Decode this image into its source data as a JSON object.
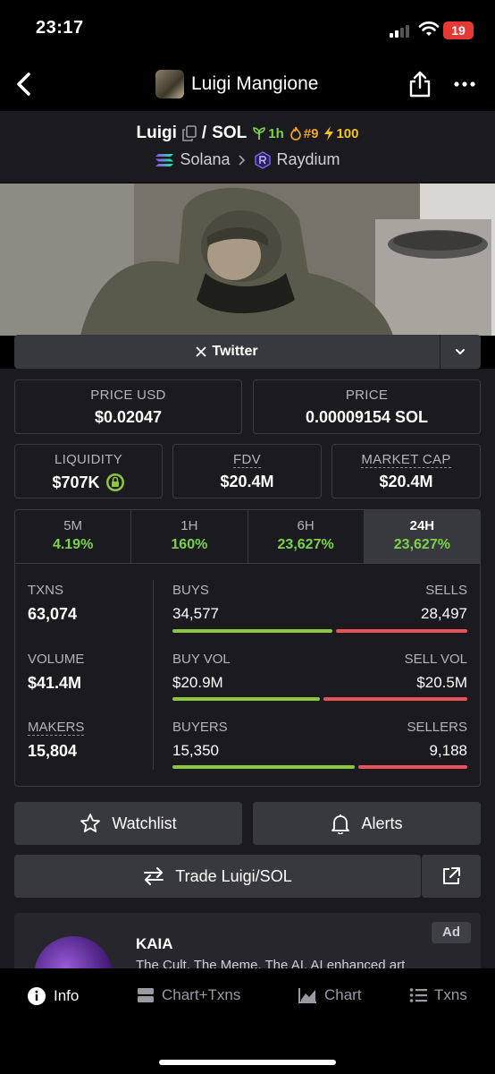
{
  "status_bar": {
    "time": "23:17",
    "battery": "19"
  },
  "nav": {
    "title": "Luigi Mangione"
  },
  "pair": {
    "base": "Luigi",
    "separator": "/",
    "quote": "SOL",
    "age": "1h",
    "rank": "#9",
    "boost": "100",
    "chain": "Solana",
    "dex": "Raydium"
  },
  "socials": {
    "twitter_label": "Twitter"
  },
  "prices": {
    "price_usd_label": "PRICE USD",
    "price_usd": "$0.02047",
    "price_native_label": "PRICE",
    "price_native": "0.00009154 SOL"
  },
  "metrics": {
    "liquidity_label": "LIQUIDITY",
    "liquidity": "$707K",
    "fdv_label": "FDV",
    "fdv": "$20.4M",
    "mcap_label": "MARKET CAP",
    "mcap": "$20.4M"
  },
  "timeframes": [
    {
      "label": "5M",
      "value": "4.19%"
    },
    {
      "label": "1H",
      "value": "160%"
    },
    {
      "label": "6H",
      "value": "23,627%"
    },
    {
      "label": "24H",
      "value": "23,627%"
    }
  ],
  "stats": {
    "txns_label": "TXNS",
    "txns": "63,074",
    "volume_label": "VOLUME",
    "volume": "$41.4M",
    "makers_label": "MAKERS",
    "makers": "15,804",
    "buys_label": "BUYS",
    "buys": "34,577",
    "sells_label": "SELLS",
    "sells": "28,497",
    "buy_vol_label": "BUY VOL",
    "buy_vol": "$20.9M",
    "sell_vol_label": "SELL VOL",
    "sell_vol": "$20.5M",
    "buyers_label": "BUYERS",
    "buyers": "15,350",
    "sellers_label": "SELLERS",
    "sellers": "9,188",
    "buys_fraction": 0.548,
    "buy_vol_fraction": 0.505,
    "buyers_fraction": 0.626
  },
  "actions": {
    "watchlist": "Watchlist",
    "alerts": "Alerts",
    "trade": "Trade Luigi/SOL"
  },
  "ad": {
    "badge": "Ad",
    "title": "KAIA",
    "description": "The Cult. The Meme. The AI. AI enhanced art"
  },
  "tabs": [
    {
      "label": "Info",
      "icon": "info-icon"
    },
    {
      "label": "Chart+Txns",
      "icon": "split-icon"
    },
    {
      "label": "Chart",
      "icon": "chart-icon"
    },
    {
      "label": "Txns",
      "icon": "list-icon"
    }
  ],
  "colors": {
    "positive": "#7bd34a",
    "negative": "#e8535b",
    "panel": "#1a1a1f",
    "button": "#38383f"
  }
}
